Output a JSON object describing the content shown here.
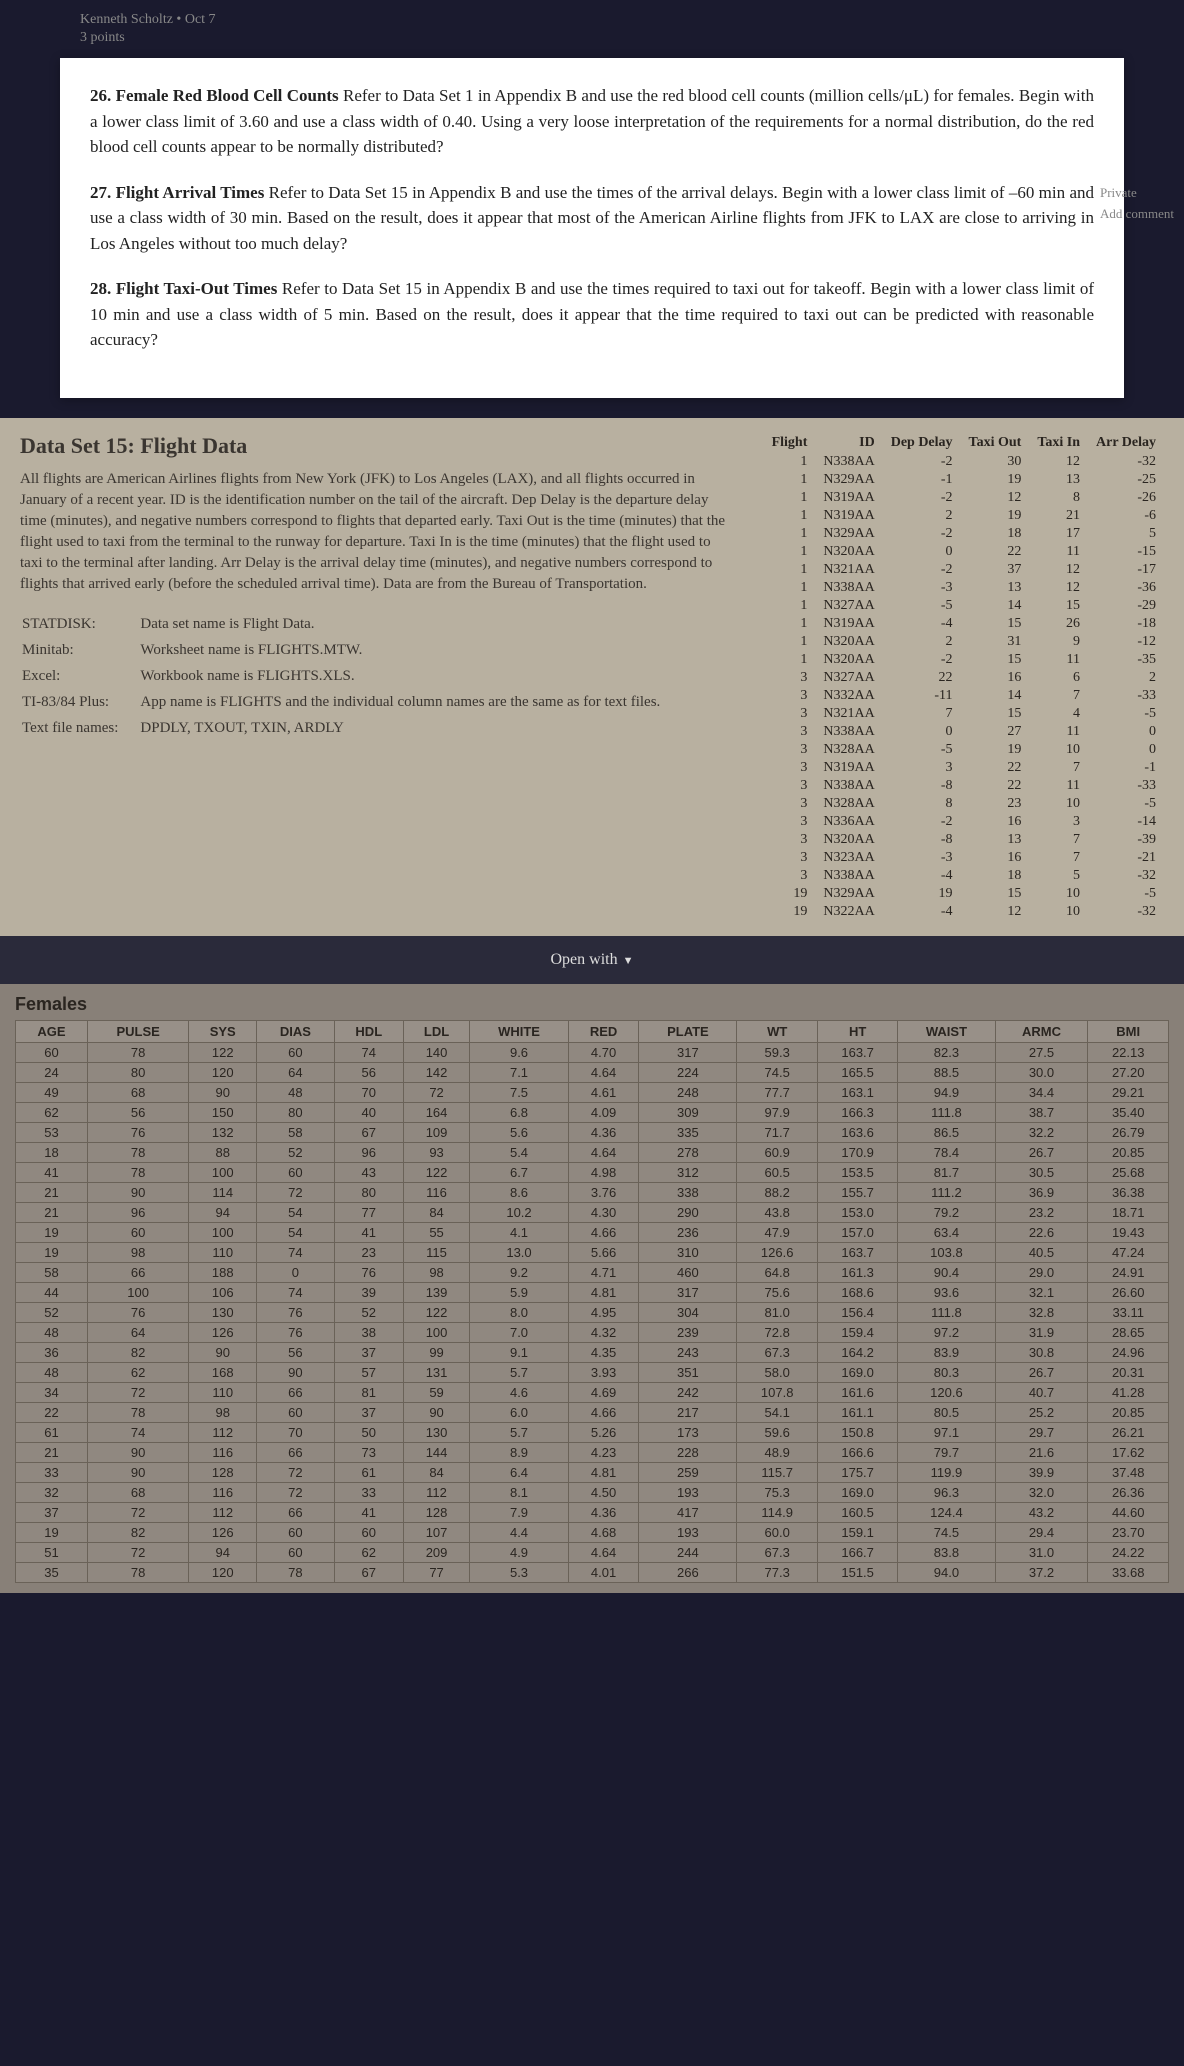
{
  "meta": {
    "author": "Kenneth Scholtz",
    "date": "Oct 7",
    "points": "3 points"
  },
  "q26": {
    "num": "26.",
    "title": "Female Red Blood Cell Counts",
    "text": " Refer to Data Set 1 in Appendix B and use the red blood cell counts (million cells/μL) for females. Begin with a lower class limit of 3.60 and use a class width of 0.40. Using a very loose interpretation of the requirements for a normal distribution, do the red blood cell counts appear to be normally distributed?"
  },
  "q27": {
    "num": "27.",
    "title": "Flight Arrival Times",
    "text": " Refer to Data Set 15 in Appendix B and use the times of the arrival delays. Begin with a lower class limit of –60 min and use a class width of 30 min. Based on the result, does it appear that most of the American Airline flights from JFK to LAX are close to arriving in Los Angeles without too much delay?"
  },
  "q28": {
    "num": "28.",
    "title": "Flight Taxi-Out Times",
    "text": " Refer to Data Set 15 in Appendix B and use the times required to taxi out for takeoff. Begin with a lower class limit of 10 min and use a class width of 5 min. Based on the result, does it appear that the time required to taxi out can be predicted with reasonable accuracy?"
  },
  "side": {
    "private": "Private",
    "add": "Add comment"
  },
  "ds": {
    "title": "Data Set 15: Flight Data",
    "desc": "All flights are American Airlines flights from New York (JFK) to Los Angeles (LAX), and all flights occurred in January of a recent year. ID is the identification number on the tail of the aircraft. Dep Delay is the departure delay time (minutes), and negative numbers correspond to flights that departed early. Taxi Out is the time (minutes) that the flight used to taxi from the terminal to the runway for departure. Taxi In is the time (minutes) that the flight used to taxi to the terminal after landing. Arr Delay is the arrival delay time (minutes), and negative numbers correspond to flights that arrived early (before the scheduled arrival time). Data are from the Bureau of Transportation.",
    "tools": [
      [
        "STATDISK:",
        "Data set name is Flight Data."
      ],
      [
        "Minitab:",
        "Worksheet name is FLIGHTS.MTW."
      ],
      [
        "Excel:",
        "Workbook name is FLIGHTS.XLS."
      ],
      [
        "TI-83/84 Plus:",
        "App name is FLIGHTS and the individual column names are the same as for text files."
      ],
      [
        "Text file names:",
        "DPDLY, TXOUT, TXIN, ARDLY"
      ]
    ],
    "cols": [
      "Flight",
      "ID",
      "Dep Delay",
      "Taxi Out",
      "Taxi In",
      "Arr Delay"
    ],
    "rows": [
      [
        "1",
        "N338AA",
        "-2",
        "30",
        "12",
        "-32"
      ],
      [
        "1",
        "N329AA",
        "-1",
        "19",
        "13",
        "-25"
      ],
      [
        "1",
        "N319AA",
        "-2",
        "12",
        "8",
        "-26"
      ],
      [
        "1",
        "N319AA",
        "2",
        "19",
        "21",
        "-6"
      ],
      [
        "1",
        "N329AA",
        "-2",
        "18",
        "17",
        "5"
      ],
      [
        "1",
        "N320AA",
        "0",
        "22",
        "11",
        "-15"
      ],
      [
        "1",
        "N321AA",
        "-2",
        "37",
        "12",
        "-17"
      ],
      [
        "1",
        "N338AA",
        "-3",
        "13",
        "12",
        "-36"
      ],
      [
        "1",
        "N327AA",
        "-5",
        "14",
        "15",
        "-29"
      ],
      [
        "1",
        "N319AA",
        "-4",
        "15",
        "26",
        "-18"
      ],
      [
        "1",
        "N320AA",
        "2",
        "31",
        "9",
        "-12"
      ],
      [
        "1",
        "N320AA",
        "-2",
        "15",
        "11",
        "-35"
      ],
      [
        "3",
        "N327AA",
        "22",
        "16",
        "6",
        "2"
      ],
      [
        "3",
        "N332AA",
        "-11",
        "14",
        "7",
        "-33"
      ],
      [
        "3",
        "N321AA",
        "7",
        "15",
        "4",
        "-5"
      ],
      [
        "3",
        "N338AA",
        "0",
        "27",
        "11",
        "0"
      ],
      [
        "3",
        "N328AA",
        "-5",
        "19",
        "10",
        "0"
      ],
      [
        "3",
        "N319AA",
        "3",
        "22",
        "7",
        "-1"
      ],
      [
        "3",
        "N338AA",
        "-8",
        "22",
        "11",
        "-33"
      ],
      [
        "3",
        "N328AA",
        "8",
        "23",
        "10",
        "-5"
      ],
      [
        "3",
        "N336AA",
        "-2",
        "16",
        "3",
        "-14"
      ],
      [
        "3",
        "N320AA",
        "-8",
        "13",
        "7",
        "-39"
      ],
      [
        "3",
        "N323AA",
        "-3",
        "16",
        "7",
        "-21"
      ],
      [
        "3",
        "N338AA",
        "-4",
        "18",
        "5",
        "-32"
      ],
      [
        "19",
        "N329AA",
        "19",
        "15",
        "10",
        "-5"
      ],
      [
        "19",
        "N322AA",
        "-4",
        "12",
        "10",
        "-32"
      ]
    ]
  },
  "openwith": "Open with",
  "females": {
    "title": "Females",
    "cols": [
      "AGE",
      "PULSE",
      "SYS",
      "DIAS",
      "HDL",
      "LDL",
      "WHITE",
      "RED",
      "PLATE",
      "WT",
      "HT",
      "WAIST",
      "ARMC",
      "BMI"
    ],
    "rows": [
      [
        "60",
        "78",
        "122",
        "60",
        "74",
        "140",
        "9.6",
        "4.70",
        "317",
        "59.3",
        "163.7",
        "82.3",
        "27.5",
        "22.13"
      ],
      [
        "24",
        "80",
        "120",
        "64",
        "56",
        "142",
        "7.1",
        "4.64",
        "224",
        "74.5",
        "165.5",
        "88.5",
        "30.0",
        "27.20"
      ],
      [
        "49",
        "68",
        "90",
        "48",
        "70",
        "72",
        "7.5",
        "4.61",
        "248",
        "77.7",
        "163.1",
        "94.9",
        "34.4",
        "29.21"
      ],
      [
        "62",
        "56",
        "150",
        "80",
        "40",
        "164",
        "6.8",
        "4.09",
        "309",
        "97.9",
        "166.3",
        "111.8",
        "38.7",
        "35.40"
      ],
      [
        "53",
        "76",
        "132",
        "58",
        "67",
        "109",
        "5.6",
        "4.36",
        "335",
        "71.7",
        "163.6",
        "86.5",
        "32.2",
        "26.79"
      ],
      [
        "18",
        "78",
        "88",
        "52",
        "96",
        "93",
        "5.4",
        "4.64",
        "278",
        "60.9",
        "170.9",
        "78.4",
        "26.7",
        "20.85"
      ],
      [
        "41",
        "78",
        "100",
        "60",
        "43",
        "122",
        "6.7",
        "4.98",
        "312",
        "60.5",
        "153.5",
        "81.7",
        "30.5",
        "25.68"
      ],
      [
        "21",
        "90",
        "114",
        "72",
        "80",
        "116",
        "8.6",
        "3.76",
        "338",
        "88.2",
        "155.7",
        "111.2",
        "36.9",
        "36.38"
      ],
      [
        "21",
        "96",
        "94",
        "54",
        "77",
        "84",
        "10.2",
        "4.30",
        "290",
        "43.8",
        "153.0",
        "79.2",
        "23.2",
        "18.71"
      ],
      [
        "19",
        "60",
        "100",
        "54",
        "41",
        "55",
        "4.1",
        "4.66",
        "236",
        "47.9",
        "157.0",
        "63.4",
        "22.6",
        "19.43"
      ],
      [
        "19",
        "98",
        "110",
        "74",
        "23",
        "115",
        "13.0",
        "5.66",
        "310",
        "126.6",
        "163.7",
        "103.8",
        "40.5",
        "47.24"
      ],
      [
        "58",
        "66",
        "188",
        "0",
        "76",
        "98",
        "9.2",
        "4.71",
        "460",
        "64.8",
        "161.3",
        "90.4",
        "29.0",
        "24.91"
      ],
      [
        "44",
        "100",
        "106",
        "74",
        "39",
        "139",
        "5.9",
        "4.81",
        "317",
        "75.6",
        "168.6",
        "93.6",
        "32.1",
        "26.60"
      ],
      [
        "52",
        "76",
        "130",
        "76",
        "52",
        "122",
        "8.0",
        "4.95",
        "304",
        "81.0",
        "156.4",
        "111.8",
        "32.8",
        "33.11"
      ],
      [
        "48",
        "64",
        "126",
        "76",
        "38",
        "100",
        "7.0",
        "4.32",
        "239",
        "72.8",
        "159.4",
        "97.2",
        "31.9",
        "28.65"
      ],
      [
        "36",
        "82",
        "90",
        "56",
        "37",
        "99",
        "9.1",
        "4.35",
        "243",
        "67.3",
        "164.2",
        "83.9",
        "30.8",
        "24.96"
      ],
      [
        "48",
        "62",
        "168",
        "90",
        "57",
        "131",
        "5.7",
        "3.93",
        "351",
        "58.0",
        "169.0",
        "80.3",
        "26.7",
        "20.31"
      ],
      [
        "34",
        "72",
        "110",
        "66",
        "81",
        "59",
        "4.6",
        "4.69",
        "242",
        "107.8",
        "161.6",
        "120.6",
        "40.7",
        "41.28"
      ],
      [
        "22",
        "78",
        "98",
        "60",
        "37",
        "90",
        "6.0",
        "4.66",
        "217",
        "54.1",
        "161.1",
        "80.5",
        "25.2",
        "20.85"
      ],
      [
        "61",
        "74",
        "112",
        "70",
        "50",
        "130",
        "5.7",
        "5.26",
        "173",
        "59.6",
        "150.8",
        "97.1",
        "29.7",
        "26.21"
      ],
      [
        "21",
        "90",
        "116",
        "66",
        "73",
        "144",
        "8.9",
        "4.23",
        "228",
        "48.9",
        "166.6",
        "79.7",
        "21.6",
        "17.62"
      ],
      [
        "33",
        "90",
        "128",
        "72",
        "61",
        "84",
        "6.4",
        "4.81",
        "259",
        "115.7",
        "175.7",
        "119.9",
        "39.9",
        "37.48"
      ],
      [
        "32",
        "68",
        "116",
        "72",
        "33",
        "112",
        "8.1",
        "4.50",
        "193",
        "75.3",
        "169.0",
        "96.3",
        "32.0",
        "26.36"
      ],
      [
        "37",
        "72",
        "112",
        "66",
        "41",
        "128",
        "7.9",
        "4.36",
        "417",
        "114.9",
        "160.5",
        "124.4",
        "43.2",
        "44.60"
      ],
      [
        "19",
        "82",
        "126",
        "60",
        "60",
        "107",
        "4.4",
        "4.68",
        "193",
        "60.0",
        "159.1",
        "74.5",
        "29.4",
        "23.70"
      ],
      [
        "51",
        "72",
        "94",
        "60",
        "62",
        "209",
        "4.9",
        "4.64",
        "244",
        "67.3",
        "166.7",
        "83.8",
        "31.0",
        "24.22"
      ],
      [
        "35",
        "78",
        "120",
        "78",
        "67",
        "77",
        "5.3",
        "4.01",
        "266",
        "77.3",
        "151.5",
        "94.0",
        "37.2",
        "33.68"
      ]
    ]
  }
}
